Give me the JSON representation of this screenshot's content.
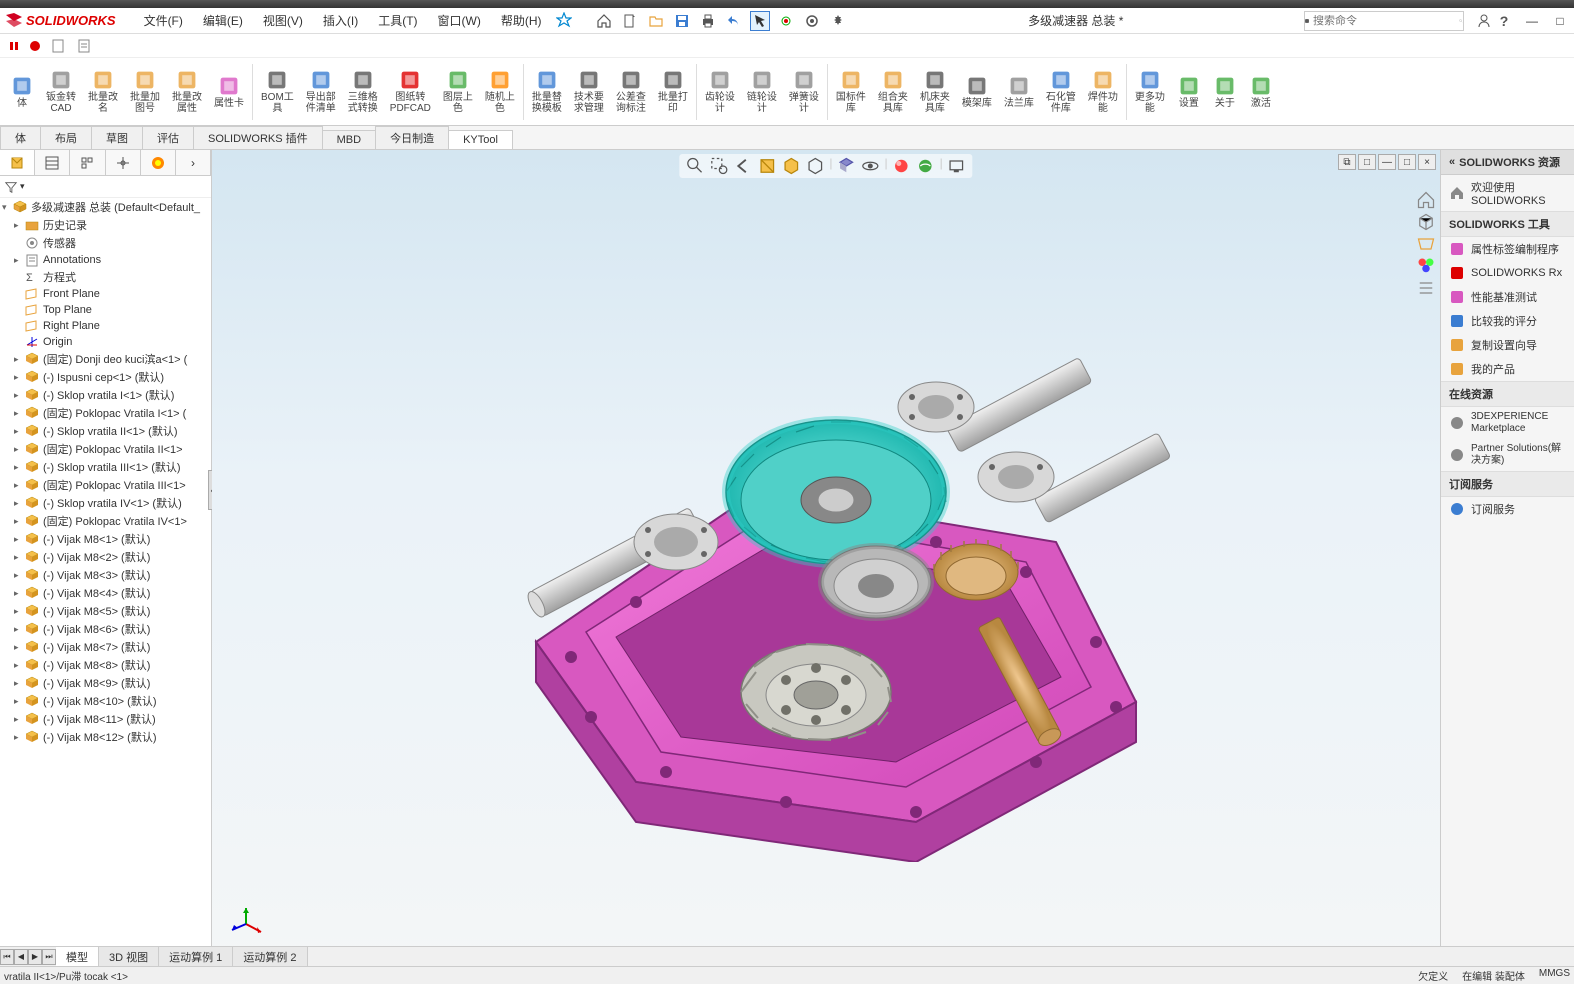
{
  "app": {
    "name": "SOLIDWORKS",
    "doc_title": "多级减速器 总装 *"
  },
  "menubar": {
    "items": [
      "文件(F)",
      "编辑(E)",
      "视图(V)",
      "插入(I)",
      "工具(T)",
      "窗口(W)",
      "帮助(H)"
    ]
  },
  "search": {
    "placeholder": "搜索命令"
  },
  "ribbon": {
    "groups": [
      [
        {
          "label": "体",
          "icon": "cube"
        },
        {
          "label": "钣金转\nCAD",
          "icon": "sheet"
        },
        {
          "label": "批量改\n名",
          "icon": "rename"
        },
        {
          "label": "批量加\n图号",
          "icon": "num"
        },
        {
          "label": "批量改\n属性",
          "icon": "prop"
        },
        {
          "label": "属性卡",
          "icon": "card"
        }
      ],
      [
        {
          "label": "BOM工\n具",
          "icon": "bom"
        },
        {
          "label": "导出部\n件清单",
          "icon": "export"
        },
        {
          "label": "三维格\n式转换",
          "icon": "3d"
        },
        {
          "label": "图纸转\nPDFCAD",
          "icon": "pdf"
        },
        {
          "label": "图层上\n色",
          "icon": "layer"
        },
        {
          "label": "随机上\n色",
          "icon": "color"
        }
      ],
      [
        {
          "label": "批量替\n换模板",
          "icon": "tpl"
        },
        {
          "label": "技术要\n求管理",
          "icon": "req"
        },
        {
          "label": "公差查\n询标注",
          "icon": "tol"
        },
        {
          "label": "批量打\n印",
          "icon": "print"
        }
      ],
      [
        {
          "label": "齿轮设\n计",
          "icon": "gear"
        },
        {
          "label": "链轮设\n计",
          "icon": "chain"
        },
        {
          "label": "弹簧设\n计",
          "icon": "spring"
        }
      ],
      [
        {
          "label": "国标件\n库",
          "icon": "lib1"
        },
        {
          "label": "组合夹\n具库",
          "icon": "lib2"
        },
        {
          "label": "机床夹\n具库",
          "icon": "lib3"
        },
        {
          "label": "模架库",
          "icon": "lib4"
        },
        {
          "label": "法兰库",
          "icon": "lib5"
        },
        {
          "label": "石化管\n件库",
          "icon": "lib6"
        },
        {
          "label": "焊件功\n能",
          "icon": "weld"
        }
      ],
      [
        {
          "label": "更多功\n能",
          "icon": "more"
        },
        {
          "label": "设置",
          "icon": "settings"
        },
        {
          "label": "关于",
          "icon": "about"
        },
        {
          "label": "激活",
          "icon": "activate"
        }
      ]
    ]
  },
  "tabs": [
    "体",
    "布局",
    "草图",
    "评估",
    "SOLIDWORKS 插件",
    "MBD",
    "今日制造",
    "KYTool"
  ],
  "tabs_active": 7,
  "feature_tree": {
    "root": "多级减速器 总装  (Default<Default_",
    "items": [
      {
        "caret": "▸",
        "icon": "folder",
        "label": "历史记录"
      },
      {
        "caret": "",
        "icon": "sensor",
        "label": "传感器"
      },
      {
        "caret": "▸",
        "icon": "note",
        "label": "Annotations"
      },
      {
        "caret": "",
        "icon": "eq",
        "label": "方程式"
      },
      {
        "caret": "",
        "icon": "plane",
        "label": "Front Plane"
      },
      {
        "caret": "",
        "icon": "plane",
        "label": "Top Plane"
      },
      {
        "caret": "",
        "icon": "plane",
        "label": "Right Plane"
      },
      {
        "caret": "",
        "icon": "origin",
        "label": "Origin"
      },
      {
        "caret": "▸",
        "icon": "part",
        "label": "(固定) Donji deo kuci滨a<1> ("
      },
      {
        "caret": "▸",
        "icon": "part",
        "label": "(-) Ispusni cep<1>  (默认)"
      },
      {
        "caret": "▸",
        "icon": "part",
        "label": "(-) Sklop vratila I<1>  (默认)"
      },
      {
        "caret": "▸",
        "icon": "part",
        "label": "(固定) Poklopac Vratila I<1> ("
      },
      {
        "caret": "▸",
        "icon": "part",
        "label": "(-) Sklop vratila II<1>  (默认)"
      },
      {
        "caret": "▸",
        "icon": "part",
        "label": "(固定) Poklopac Vratila II<1>"
      },
      {
        "caret": "▸",
        "icon": "part",
        "label": "(-) Sklop vratila III<1>  (默认)"
      },
      {
        "caret": "▸",
        "icon": "part",
        "label": "(固定) Poklopac Vratila III<1>"
      },
      {
        "caret": "▸",
        "icon": "part",
        "label": "(-) Sklop vratila IV<1>  (默认)"
      },
      {
        "caret": "▸",
        "icon": "part",
        "label": "(固定) Poklopac Vratila IV<1>"
      },
      {
        "caret": "▸",
        "icon": "part",
        "label": "(-) Vijak M8<1>  (默认)"
      },
      {
        "caret": "▸",
        "icon": "part",
        "label": "(-) Vijak M8<2>  (默认)"
      },
      {
        "caret": "▸",
        "icon": "part",
        "label": "(-) Vijak M8<3>  (默认)"
      },
      {
        "caret": "▸",
        "icon": "part",
        "label": "(-) Vijak M8<4>  (默认)"
      },
      {
        "caret": "▸",
        "icon": "part",
        "label": "(-) Vijak M8<5>  (默认)"
      },
      {
        "caret": "▸",
        "icon": "part",
        "label": "(-) Vijak M8<6>  (默认)"
      },
      {
        "caret": "▸",
        "icon": "part",
        "label": "(-) Vijak M8<7>  (默认)"
      },
      {
        "caret": "▸",
        "icon": "part",
        "label": "(-) Vijak M8<8>  (默认)"
      },
      {
        "caret": "▸",
        "icon": "part",
        "label": "(-) Vijak M8<9>  (默认)"
      },
      {
        "caret": "▸",
        "icon": "part",
        "label": "(-) Vijak M8<10>  (默认)"
      },
      {
        "caret": "▸",
        "icon": "part",
        "label": "(-) Vijak M8<11>  (默认)"
      },
      {
        "caret": "▸",
        "icon": "part",
        "label": "(-) Vijak M8<12>  (默认)"
      }
    ]
  },
  "bottom_tabs": [
    "模型",
    "3D 视图",
    "运动算例 1",
    "运动算例 2"
  ],
  "right_panel": {
    "title": "SOLIDWORKS 资源",
    "welcome": "欢迎使用  SOLIDWORKS",
    "tools_header": "SOLIDWORKS 工具",
    "tools": [
      "属性标签编制程序",
      "SOLIDWORKS Rx",
      "性能基准测试",
      "比较我的评分",
      "复制设置向导",
      "我的产品"
    ],
    "online_header": "在线资源",
    "online": [
      "3DEXPERIENCE Marketplace",
      "Partner Solutions(解决方案)"
    ],
    "sub_header": "订阅服务",
    "sub": [
      "订阅服务"
    ]
  },
  "statusbar": {
    "left": "vratila II<1>/Pu滞 tocak <1>",
    "right": [
      "欠定义",
      "在编辑 装配体",
      "MMGS"
    ]
  },
  "colors": {
    "accent_red": "#d00020",
    "housing": "#e858c8",
    "housing_dark": "#c040a8",
    "gear_teal": "#40d8d0",
    "gear_brass": "#d8a868",
    "shaft": "#d8d8d8",
    "bevel": "#c0c0b8"
  },
  "model": {
    "type": "3d-assembly-render",
    "view": "isometric",
    "housing_shape": "pentagonal-base",
    "components": [
      "housing",
      "helical-gear-large",
      "bevel-gear",
      "spur-gears",
      "shafts-4",
      "flanges"
    ]
  }
}
